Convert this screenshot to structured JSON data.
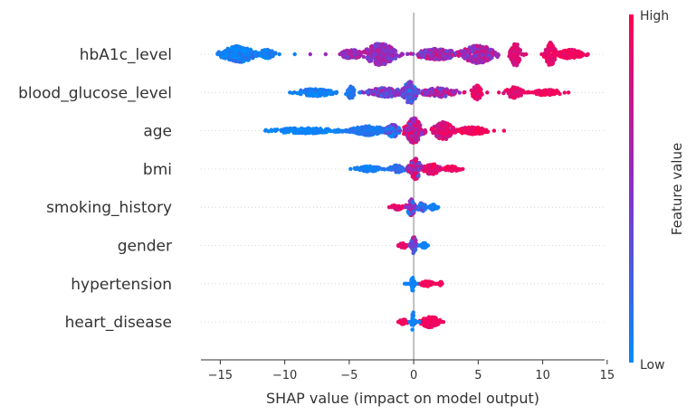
{
  "chart_data": {
    "type": "scatter",
    "subtype": "shap-beeswarm",
    "title": "",
    "xlabel": "SHAP value (impact on model output)",
    "ylabel": "",
    "xlim": [
      -16.5,
      14.8
    ],
    "xticks": [
      -15,
      -10,
      -5,
      0,
      5,
      10,
      15
    ],
    "xtick_labels": [
      "−15",
      "−10",
      "−5",
      "0",
      "5",
      "10",
      "15"
    ],
    "grid": false,
    "colorbar": {
      "label": "Feature value",
      "high_label": "High",
      "low_label": "Low",
      "low_color": "#008bfb",
      "mid_color": "#8a30c8",
      "high_color": "#ff0052"
    },
    "features": [
      {
        "name": "hbA1c_level",
        "x_range": [
          -15.2,
          13.5
        ],
        "clusters": [
          {
            "center": -13.6,
            "spread": 1.2,
            "width": 9,
            "color": 0.05,
            "jitter": 0.15
          },
          {
            "center": -11.4,
            "spread": 0.6,
            "width": 5,
            "color": 0.05,
            "jitter": 0.15
          },
          {
            "center": -2.6,
            "spread": 1.1,
            "width": 12,
            "color": 0.55,
            "jitter": 0.2
          },
          {
            "center": -4.8,
            "spread": 0.8,
            "width": 5,
            "color": 0.55,
            "jitter": 0.2
          },
          {
            "center": 1.8,
            "spread": 1.5,
            "width": 6,
            "color": 0.6,
            "jitter": 0.3
          },
          {
            "center": 5.0,
            "spread": 1.2,
            "width": 10,
            "color": 0.62,
            "jitter": 0.25
          },
          {
            "center": 7.9,
            "spread": 0.35,
            "width": 13,
            "color": 0.85,
            "jitter": 0.1
          },
          {
            "center": 10.6,
            "spread": 0.35,
            "width": 13,
            "color": 0.9,
            "jitter": 0.1
          },
          {
            "center": 12.2,
            "spread": 0.9,
            "width": 5,
            "color": 0.95,
            "jitter": 0.1
          }
        ]
      },
      {
        "name": "blood_glucose_level",
        "x_range": [
          -9.6,
          12.0
        ],
        "clusters": [
          {
            "center": -7.6,
            "spread": 1.4,
            "width": 4,
            "color": 0.05,
            "jitter": 0.1
          },
          {
            "center": -4.9,
            "spread": 0.3,
            "width": 7,
            "color": 0.1,
            "jitter": 0.1
          },
          {
            "center": -2.2,
            "spread": 1.4,
            "width": 5,
            "color": 0.45,
            "jitter": 0.3
          },
          {
            "center": -0.3,
            "spread": 0.5,
            "width": 12,
            "color": 0.3,
            "jitter": 0.3
          },
          {
            "center": 2.0,
            "spread": 1.3,
            "width": 5,
            "color": 0.55,
            "jitter": 0.3
          },
          {
            "center": 4.9,
            "spread": 0.35,
            "width": 8,
            "color": 0.9,
            "jitter": 0.1
          },
          {
            "center": 7.8,
            "spread": 0.6,
            "width": 6,
            "color": 0.9,
            "jitter": 0.1
          },
          {
            "center": 10.3,
            "spread": 1.2,
            "width": 3,
            "color": 0.95,
            "jitter": 0.1
          }
        ]
      },
      {
        "name": "age",
        "x_range": [
          -11.5,
          7.0
        ],
        "clusters": [
          {
            "center": -8.5,
            "spread": 2.5,
            "width": 3,
            "color": 0.05,
            "jitter": 0.05
          },
          {
            "center": -3.5,
            "spread": 1.4,
            "width": 5,
            "color": 0.1,
            "jitter": 0.1
          },
          {
            "center": -1.6,
            "spread": 0.5,
            "width": 7,
            "color": 0.2,
            "jitter": 0.3
          },
          {
            "center": 0.0,
            "spread": 0.6,
            "width": 14,
            "color": 0.75,
            "jitter": 0.3
          },
          {
            "center": 2.3,
            "spread": 0.7,
            "width": 10,
            "color": 0.85,
            "jitter": 0.2
          },
          {
            "center": 4.5,
            "spread": 1.2,
            "width": 4,
            "color": 0.95,
            "jitter": 0.1
          }
        ]
      },
      {
        "name": "bmi",
        "x_range": [
          -4.9,
          3.8
        ],
        "clusters": [
          {
            "center": -3.5,
            "spread": 1.0,
            "width": 3,
            "color": 0.05,
            "jitter": 0.1
          },
          {
            "center": -1.3,
            "spread": 0.6,
            "width": 4,
            "color": 0.15,
            "jitter": 0.2
          },
          {
            "center": 0.1,
            "spread": 0.4,
            "width": 12,
            "color": 0.6,
            "jitter": 0.4
          },
          {
            "center": 1.4,
            "spread": 0.6,
            "width": 6,
            "color": 0.9,
            "jitter": 0.2
          },
          {
            "center": 2.9,
            "spread": 0.6,
            "width": 3,
            "color": 0.95,
            "jitter": 0.1
          }
        ]
      },
      {
        "name": "smoking_history",
        "x_range": [
          -1.9,
          1.9
        ],
        "clusters": [
          {
            "center": -1.3,
            "spread": 0.4,
            "width": 3,
            "color": 0.9,
            "jitter": 0.2
          },
          {
            "center": -0.2,
            "spread": 0.3,
            "width": 9,
            "color": 0.5,
            "jitter": 0.5
          },
          {
            "center": 0.6,
            "spread": 0.3,
            "width": 5,
            "color": 0.2,
            "jitter": 0.4
          },
          {
            "center": 1.5,
            "spread": 0.3,
            "width": 3,
            "color": 0.05,
            "jitter": 0.1
          }
        ]
      },
      {
        "name": "gender",
        "x_range": [
          -1.2,
          1.1
        ],
        "clusters": [
          {
            "center": -0.8,
            "spread": 0.3,
            "width": 3,
            "color": 0.9,
            "jitter": 0.1
          },
          {
            "center": 0.0,
            "spread": 0.2,
            "width": 10,
            "color": 0.4,
            "jitter": 0.5
          },
          {
            "center": 0.8,
            "spread": 0.2,
            "width": 3,
            "color": 0.05,
            "jitter": 0.1
          }
        ]
      },
      {
        "name": "hypertension",
        "x_range": [
          -0.7,
          2.2
        ],
        "clusters": [
          {
            "center": -0.1,
            "spread": 0.15,
            "width": 8,
            "color": 0.05,
            "jitter": 0.05
          },
          {
            "center": 1.0,
            "spread": 0.5,
            "width": 3,
            "color": 0.95,
            "jitter": 0.05
          },
          {
            "center": 2.1,
            "spread": 0.1,
            "width": 2,
            "color": 0.95,
            "jitter": 0.05
          }
        ]
      },
      {
        "name": "heart_disease",
        "x_range": [
          -1.2,
          2.3
        ],
        "clusters": [
          {
            "center": -0.8,
            "spread": 0.3,
            "width": 3,
            "color": 0.95,
            "jitter": 0.05
          },
          {
            "center": -0.05,
            "spread": 0.12,
            "width": 11,
            "color": 0.05,
            "jitter": 0.05
          },
          {
            "center": 1.3,
            "spread": 0.7,
            "width": 6,
            "color": 0.95,
            "jitter": 0.05
          }
        ]
      }
    ]
  }
}
